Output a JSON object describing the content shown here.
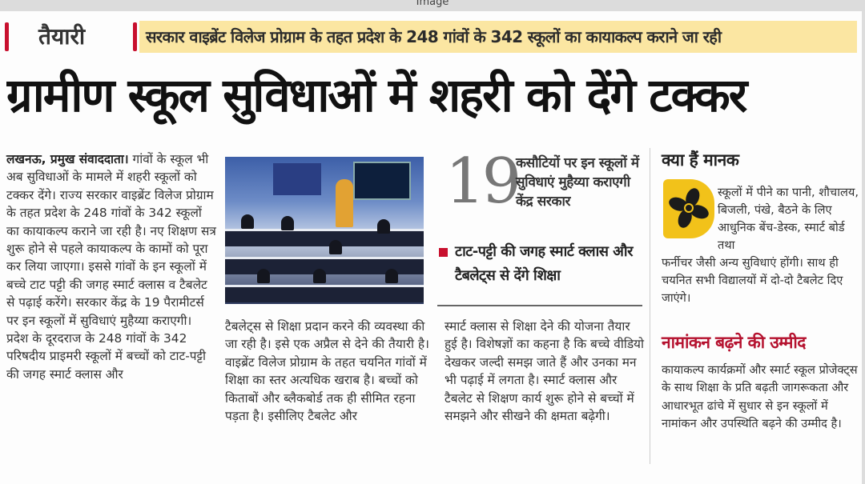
{
  "viewer": {
    "title": "Image"
  },
  "article": {
    "kicker": "तैयारी",
    "deck": "सरकार वाइब्रेंट विलेज प्रोग्राम के तहत प्रदेश के 248 गांवों के 342 स्कूलों का कायाकल्प कराने जा रही",
    "headline": "ग्रामीण स्कूल सुविधाओं में शहरी को देंगे टक्कर",
    "dateline": "लखनऊ, प्रमुख संवाददाता।",
    "column1": "गांवों के स्कूल भी अब सुविधाओं के मामले में शहरी स्कूलों को टक्कर देंगे। राज्य सरकार वाइब्रेंट विलेज प्रोग्राम के तहत प्रदेश के 248 गांवों के 342 स्कूलों का कायाकल्प कराने जा रही है। नए शिक्षण सत्र शुरू होने से पहले कायाकल्प के कामों को पूरा कर लिया जाएगा। इससे गांवों के इन स्कूलों में बच्चे टाट पट्टी की जगह स्मार्ट क्लास व टैबलेट से पढ़ाई करेंगे। सरकार केंद्र के 19 पैरामीटर्स पर इन स्कूलों में सुविधाएं मुहैय्या कराएगी। प्रदेश के दूरदराज के 248 गांवों के 342 परिषदीय प्राइमरी स्कूलों में बच्चों को टाट-पट्टी की जगह स्मार्ट क्लास और",
    "column2": "टैबलेट्स से शिक्षा प्रदान करने की व्यवस्था की जा रही है। इसे एक अप्रैल से देने की तैयारी है। वाइब्रेंट विलेज प्रोग्राम के तहत चयनित गांवों में शिक्षा का स्तर अत्यधिक खराब है। बच्चों को किताबों और ब्लैकबोर्ड तक ही सीमित रहना पड़ता है। इसीलिए टैबलेट और",
    "column3": "स्मार्ट क्लास से शिक्षा देने की योजना तैयार हुई है। विशेषज्ञों का कहना है कि बच्चे वीडियो देखकर जल्दी समझ जाते हैं और उनका मन भी पढ़ाई में लगता है। स्मार्ट क्लास और टैबलेट से शिक्षण कार्य शुरू होने से बच्चों में समझने और सीखने की क्षमता बढ़ेगी।",
    "stat": {
      "number": "19",
      "text": "कसौटियों पर इन स्कूलों में सुविधाएं मुहैय्या कराएगी केंद्र सरकार"
    },
    "bullet": "टाट-पट्टी की जगह स्मार्ट क्लास और टैबलेट्स से देंगे शिक्षा",
    "sidebar": {
      "title": "क्या हैं मानक",
      "icon": "fan-icon",
      "text_indented": "स्कूलों में पीने का पानी, शौचालय, बिजली, पंखे, बैठने के लिए आधुनिक बेंच-डेस्क, स्मार्ट बोर्ड तथा",
      "text": "फर्नीचर जैसी अन्य सुविधाएं होंगी। साथ ही चयनित सभी विद्यालयों में दो-दो टैबलेट दिए जाएंगे।"
    },
    "sidebar2": {
      "title": "नामांकन बढ़ने की उम्मीद",
      "text": "कायाकल्प कार्यक्रमों और स्मार्ट स्कूल प्रोजेक्ट्स के साथ शिक्षा के प्रति बढ़ती जागरूकता और आधारभूत ढांचे में सुधार से इन स्कूलों में नामांकन और उपस्थिति बढ़ने की उम्मीद है।"
    },
    "colors": {
      "accent_red": "#c8102e",
      "deck_bg": "#fbe6a2",
      "icon_yellow": "#f2c21a"
    }
  }
}
